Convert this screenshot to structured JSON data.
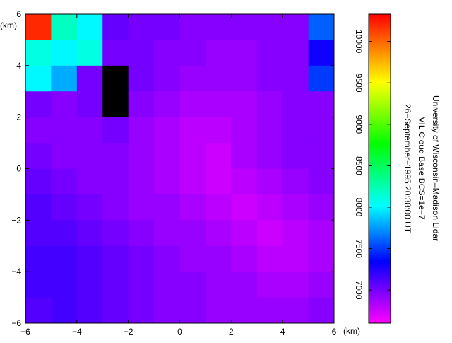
{
  "chart_data": {
    "type": "heatmap",
    "title_lines": [
      "University of Wisconsin–Madison Lidar",
      "VIL Cloud Base BCS=1e−7",
      "26−September−1995 20:38:00 UT"
    ],
    "x_unit": "(km)",
    "y_unit": "(km)",
    "xlim": [
      -6,
      6
    ],
    "ylim": [
      -6,
      6
    ],
    "xticks": [
      {
        "value": -6,
        "label": "−6"
      },
      {
        "value": -4,
        "label": "−4"
      },
      {
        "value": -2,
        "label": "−2"
      },
      0,
      2,
      4,
      6
    ],
    "yticks": [
      {
        "value": -6,
        "label": "−6"
      },
      {
        "value": -4,
        "label": "−4"
      },
      {
        "value": -2,
        "label": "−2"
      },
      0,
      2,
      4,
      6
    ],
    "z": [
      [
        10200,
        8200,
        8000,
        7050,
        7000,
        7000,
        6950,
        6950,
        6950,
        6950,
        6950,
        7600
      ],
      [
        8100,
        8000,
        8100,
        7000,
        7000,
        6950,
        6950,
        6900,
        6900,
        6950,
        6950,
        7300
      ],
      [
        8000,
        7800,
        7000,
        null,
        7000,
        6950,
        6900,
        6900,
        6900,
        6950,
        6950,
        7500
      ],
      [
        7000,
        6950,
        7000,
        null,
        6950,
        6900,
        6850,
        6850,
        6850,
        6900,
        6950,
        6950
      ],
      [
        6950,
        6950,
        6950,
        7000,
        6900,
        6850,
        6800,
        6800,
        6850,
        6900,
        6950,
        6950
      ],
      [
        7000,
        6950,
        6950,
        6950,
        6900,
        6850,
        6800,
        6750,
        6850,
        6900,
        6950,
        6950
      ],
      [
        7050,
        7000,
        6950,
        6950,
        6900,
        6850,
        6800,
        6750,
        6800,
        6850,
        6900,
        6950
      ],
      [
        7100,
        7050,
        7000,
        6950,
        6900,
        6900,
        6850,
        6800,
        6750,
        6800,
        6850,
        6900
      ],
      [
        7100,
        7100,
        7050,
        7000,
        6950,
        6900,
        6900,
        6850,
        6800,
        6750,
        6800,
        6850
      ],
      [
        7150,
        7150,
        7100,
        7050,
        7000,
        6950,
        6900,
        6900,
        6850,
        6800,
        6800,
        6850
      ],
      [
        7150,
        7150,
        7100,
        7050,
        7000,
        6950,
        6950,
        6900,
        6900,
        6850,
        6850,
        6900
      ],
      [
        7100,
        7150,
        7100,
        7050,
        7000,
        6950,
        6950,
        6900,
        6900,
        6900,
        6900,
        6950
      ]
    ],
    "colorbar": {
      "lim": [
        6600,
        10330
      ],
      "ticks": [
        7000,
        7500,
        8000,
        8500,
        9000,
        9500,
        10000
      ]
    }
  }
}
